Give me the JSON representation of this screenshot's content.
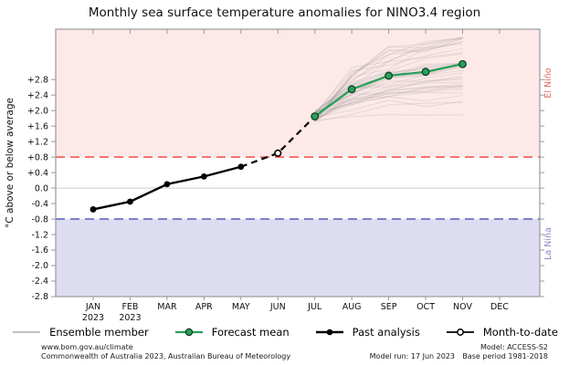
{
  "page": {
    "title": "Monthly sea surface temperature anomalies for NINO3.4 region"
  },
  "chart_data": {
    "type": "line",
    "title": "Monthly sea surface temperature anomalies for NINO3.4 region",
    "ylabel": "°C above or below average",
    "ylim": [
      -2.8,
      4.1
    ],
    "grid": "zero-line only",
    "y_ticks": [
      {
        "value": 2.8,
        "label": "+2.8"
      },
      {
        "value": 2.4,
        "label": "+2.4"
      },
      {
        "value": 2.0,
        "label": "+2.0"
      },
      {
        "value": 1.6,
        "label": "+1.6"
      },
      {
        "value": 1.2,
        "label": "+1.2"
      },
      {
        "value": 0.8,
        "label": "+0.8"
      },
      {
        "value": 0.4,
        "label": "+0.4"
      },
      {
        "value": 0.0,
        "label": "0.0"
      },
      {
        "value": -0.4,
        "label": "-0.4"
      },
      {
        "value": -0.8,
        "label": "-0.8"
      },
      {
        "value": -1.2,
        "label": "-1.2"
      },
      {
        "value": -1.6,
        "label": "-1.6"
      },
      {
        "value": -2.0,
        "label": "-2.0"
      },
      {
        "value": -2.4,
        "label": "-2.4"
      },
      {
        "value": -2.8,
        "label": "-2.8"
      }
    ],
    "x_ticks": [
      {
        "label": "JAN",
        "year": "2023"
      },
      {
        "label": "FEB",
        "year": "2023"
      },
      {
        "label": "MAR",
        "year": ""
      },
      {
        "label": "APR",
        "year": ""
      },
      {
        "label": "MAY",
        "year": ""
      },
      {
        "label": "JUN",
        "year": ""
      },
      {
        "label": "JUL",
        "year": ""
      },
      {
        "label": "AUG",
        "year": ""
      },
      {
        "label": "SEP",
        "year": ""
      },
      {
        "label": "OCT",
        "year": ""
      },
      {
        "label": "NOV",
        "year": ""
      },
      {
        "label": "DEC",
        "year": ""
      }
    ],
    "thresholds": {
      "el_nino_value": 0.8,
      "la_nina_value": -0.8
    },
    "band_labels": {
      "el_nino": "El Niño",
      "la_nina": "La Niña"
    },
    "series": {
      "past_analysis": {
        "name": "Past analysis",
        "months": [
          "JAN",
          "FEB",
          "MAR",
          "APR",
          "MAY"
        ],
        "values": [
          -0.55,
          -0.35,
          0.1,
          0.3,
          0.55
        ]
      },
      "month_to_date": {
        "name": "Month-to-date",
        "months": [
          "JUN"
        ],
        "values": [
          0.9
        ]
      },
      "forecast_mean": {
        "name": "Forecast mean",
        "months": [
          "JUL",
          "AUG",
          "SEP",
          "OCT",
          "NOV"
        ],
        "values": [
          1.85,
          2.55,
          2.9,
          3.0,
          3.2
        ]
      },
      "ensemble": {
        "name": "Ensemble member",
        "months": [
          "JUL",
          "AUG",
          "SEP",
          "OCT",
          "NOV"
        ],
        "count": 38,
        "start_range": [
          1.7,
          2.0
        ],
        "end_range": [
          1.8,
          3.9
        ],
        "note": "unlabeled grey ensemble traces; fan spreads from ~1.85 in JUL to ~1.8-3.9 by NOV"
      }
    }
  },
  "colors": {
    "el_nino_band": "#fce9e8",
    "la_nina_band": "#dddcf1",
    "el_nino_line": "#f4655c",
    "la_nina_line": "#7577cb",
    "el_nino_text": "#e06b66",
    "la_nina_text": "#8a8cd0",
    "forecast_green": "#28a05a",
    "forecast_marker_edge": "#0c3b1e",
    "past_black": "#000000",
    "ensemble_gray": "#8c8c8c",
    "frame": "#999999",
    "zero_line": "#cccccc",
    "tick_label": "#111111"
  },
  "legend": {
    "items": [
      {
        "label": "Ensemble member"
      },
      {
        "label": "Forecast mean"
      },
      {
        "label": "Past analysis"
      },
      {
        "label": "Month-to-date"
      }
    ]
  },
  "footer": {
    "url": "www.bom.gov.au/climate",
    "attribution": "Commonwealth of Australia 2023, Australian Bureau of Meteorology",
    "model_run": "Model run: 17 Jun 2023",
    "model": "Model: ACCESS-S2",
    "base_period": "Base period 1981-2018"
  }
}
